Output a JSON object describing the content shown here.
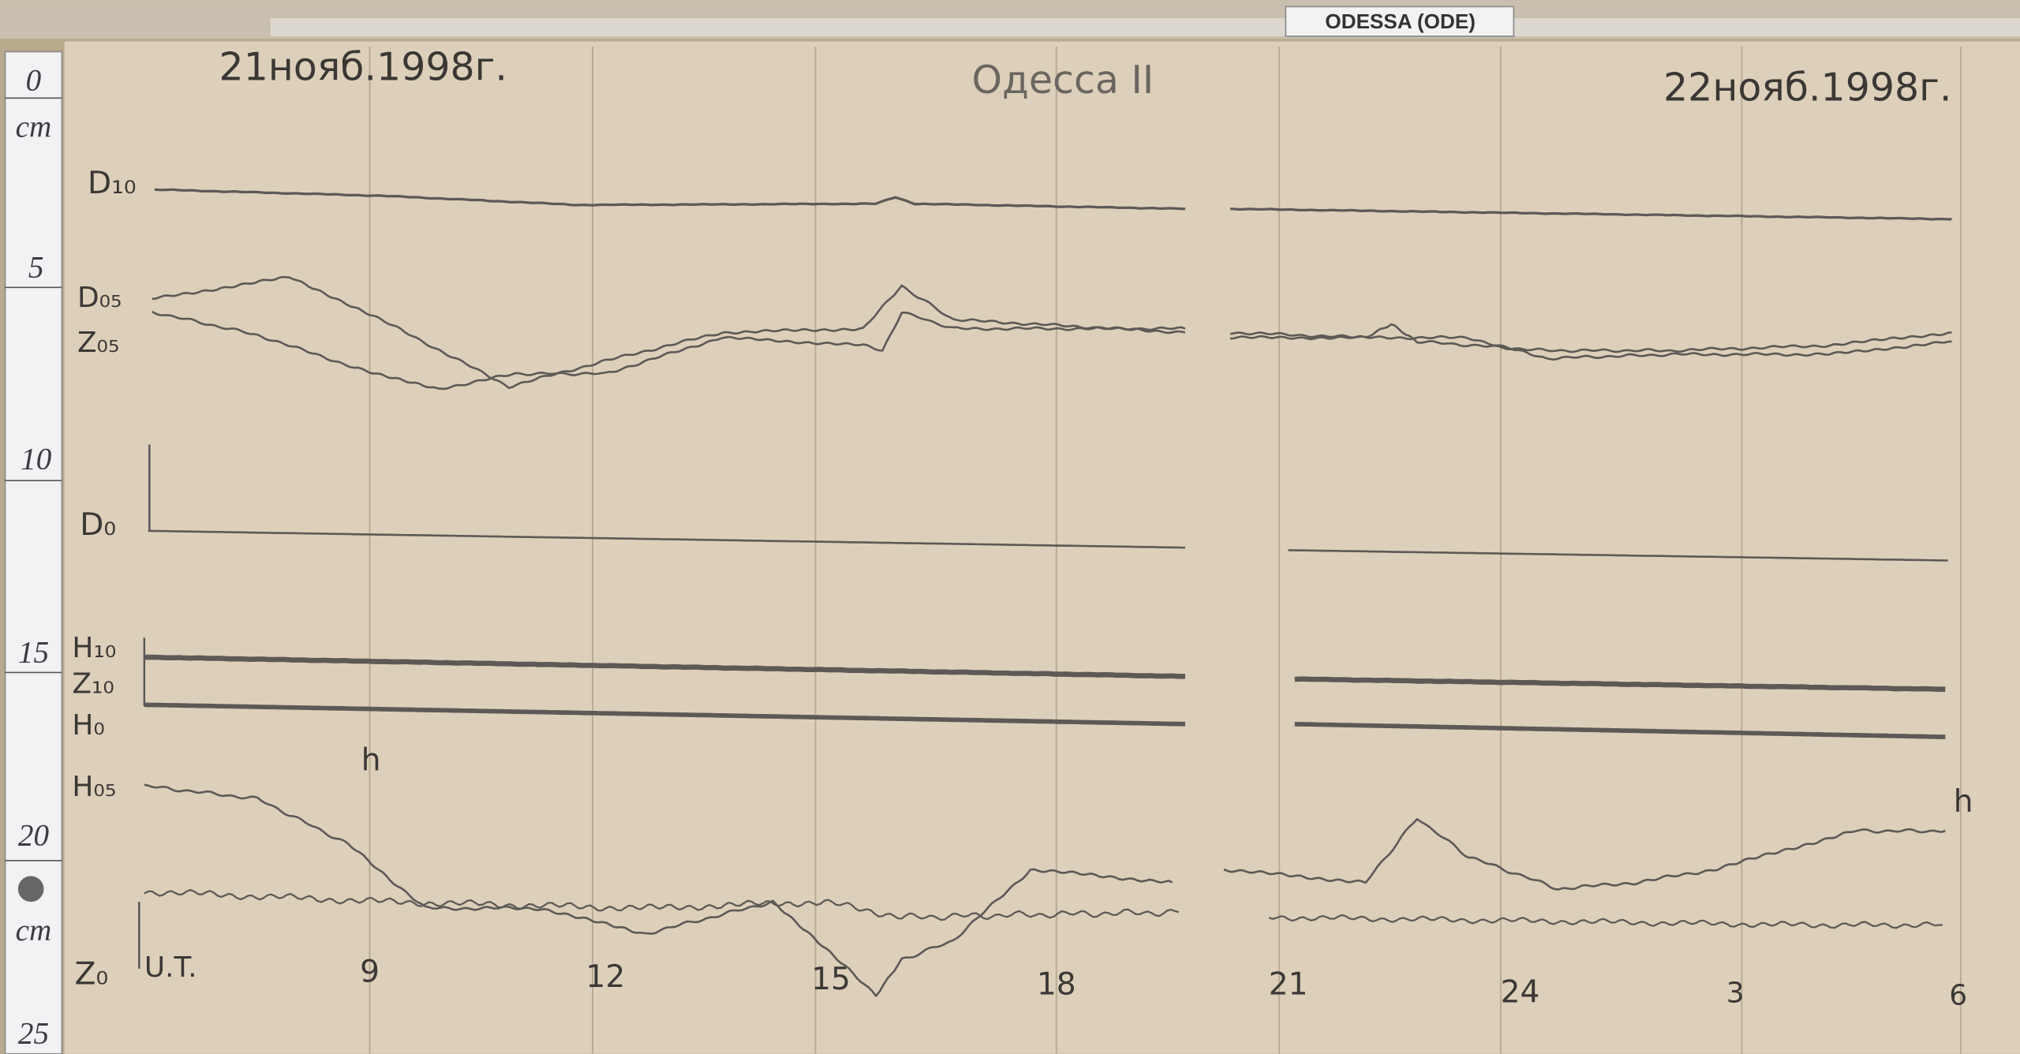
{
  "station_label": "ODESSA (ODE)",
  "header": {
    "start_date": "21нояб.1998г.",
    "station": "Одесса II",
    "end_date": "22нояб.1998г."
  },
  "ruler": {
    "marks": [
      "0",
      "5",
      "10",
      "15",
      "20",
      "25"
    ],
    "unit": "cm"
  },
  "curve_labels": [
    "D₁₀",
    "D₀₅",
    "Z₀₅",
    "D₀",
    "H₁₀",
    "Z₁₀",
    "H₀",
    "H₀₅",
    "Z₀"
  ],
  "time_axis": {
    "name": "U.T.",
    "unit": "h",
    "hours": [
      "9",
      "12",
      "15",
      "18",
      "21",
      "24",
      "3",
      "6"
    ]
  }
}
